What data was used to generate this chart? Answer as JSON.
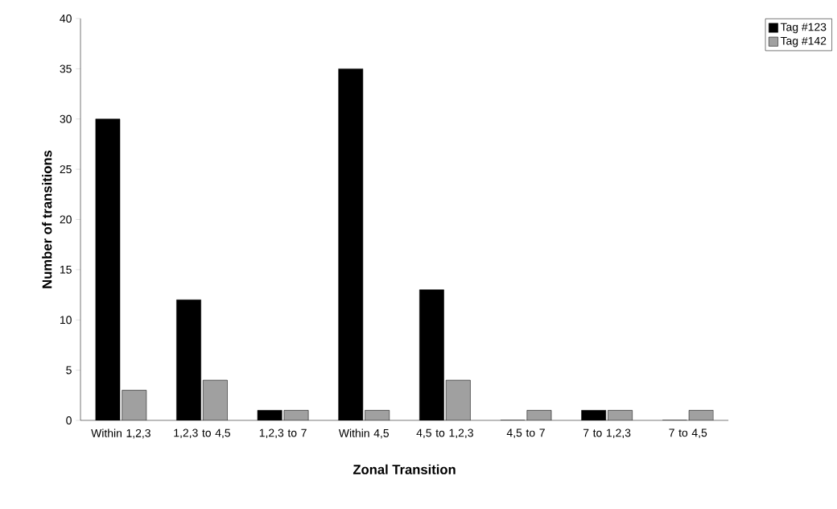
{
  "chart_data": {
    "type": "bar",
    "xlabel": "Zonal Transition",
    "ylabel": "Number of transitions",
    "categories": [
      "Within 1,2,3",
      "1,2,3 to 4,5",
      "1,2,3 to 7",
      "Within 4,5",
      "4,5 to 1,2,3",
      "4,5 to 7",
      "7 to 1,2,3",
      "7 to 4,5"
    ],
    "series": [
      {
        "name": "Tag #123",
        "color": "#000000",
        "values": [
          30,
          12,
          1,
          35,
          13,
          0,
          1,
          0
        ]
      },
      {
        "name": "Tag #142",
        "color": "#a0a0a0",
        "values": [
          3,
          4,
          1,
          1,
          4,
          1,
          1,
          1
        ]
      }
    ],
    "ylim": [
      0,
      40
    ],
    "yticks": [
      0,
      5,
      10,
      15,
      20,
      25,
      30,
      35,
      40
    ],
    "grid": false,
    "legend": "top right"
  }
}
